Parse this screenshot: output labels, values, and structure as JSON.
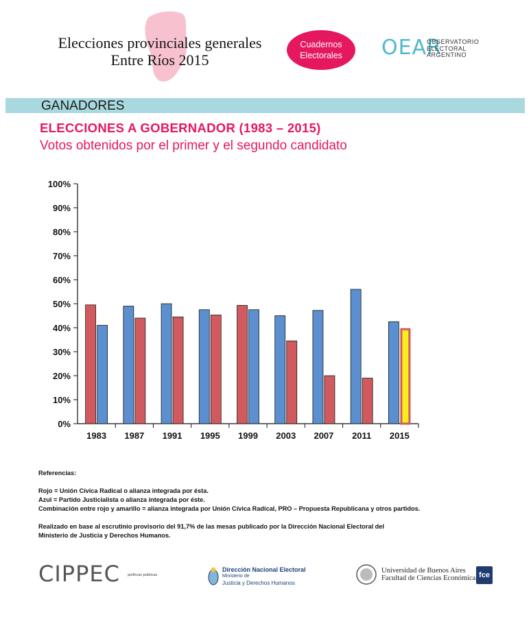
{
  "header": {
    "title_line1": "Elecciones provinciales generales",
    "title_line2": "Entre Ríos 2015",
    "badge_line1": "Cuadernos",
    "badge_line2": "Electorales",
    "oear_mark": "OEAR",
    "oear_line1": "OBSERVATORIO",
    "oear_line2": "ELECTORAL",
    "oear_line3": "ARGENTINO"
  },
  "section": {
    "label": "GANADORES"
  },
  "chart_data": {
    "type": "bar",
    "title": "ELECCIONES A GOBERNADOR (1983 – 2015)",
    "subtitle": "Votos obtenidos por el primer y el segundo candidato",
    "categories": [
      "1983",
      "1987",
      "1991",
      "1995",
      "1999",
      "2003",
      "2007",
      "2011",
      "2015"
    ],
    "series": [
      {
        "name": "Primer candidato",
        "values": [
          49.5,
          49,
          50,
          47.5,
          49.3,
          45,
          47.2,
          56,
          42.5
        ],
        "colors": [
          "red",
          "blue",
          "blue",
          "blue",
          "red",
          "blue",
          "blue",
          "blue",
          "blue"
        ]
      },
      {
        "name": "Segundo candidato",
        "values": [
          41,
          44,
          44.5,
          45.3,
          47.5,
          34.5,
          20,
          19,
          39.8
        ],
        "colors": [
          "blue",
          "red",
          "red",
          "red",
          "blue",
          "red",
          "red",
          "red",
          "red-yellow"
        ]
      }
    ],
    "ylim": [
      0,
      100
    ],
    "yticks": [
      "0%",
      "10%",
      "20%",
      "30%",
      "40%",
      "50%",
      "60%",
      "70%",
      "80%",
      "90%",
      "100%"
    ],
    "palette": {
      "red": "#d05a5e",
      "blue": "#5b8fcf",
      "yellow": "#f7ee1a",
      "red_border": "#d05a5e"
    }
  },
  "references": {
    "heading": "Referencias:",
    "line1": "Rojo = Unión Cívica Radical o alianza integrada por ésta.",
    "line2": "Azul = Partido Justicialista o alianza integrada por éste.",
    "line3": "Combinación entre rojo y amarillo = alianza integrada por Unión Cívica Radical, PRO – Propuesta Republicana y otros partidos.",
    "source1": "Realizado en base al escrutinio provisorio del 91,7% de las mesas publicado por la Dirección Nacional Electoral del",
    "source2": "Ministerio de Justicia y Derechos Humanos."
  },
  "footer": {
    "cippec": "CIPPEC",
    "cippec_sub": "políticas públicas",
    "dne_line1": "Dirección Nacional Electoral",
    "dne_line2": "Ministerio de",
    "dne_line3": "Justicia y Derechos Humanos",
    "uba_line1": "Universidad de Buenos Aires",
    "uba_line2": "Facultad de Ciencias Económicas",
    "uba_mark": "fce"
  }
}
